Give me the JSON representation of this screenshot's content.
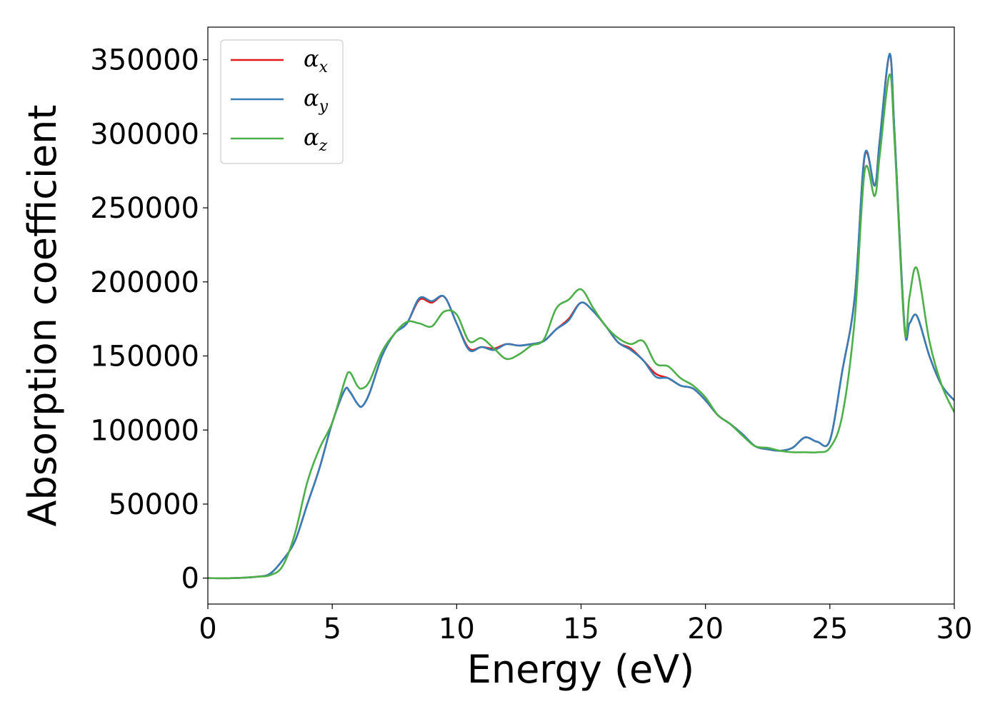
{
  "chart_data": {
    "type": "line",
    "xlabel": "Energy (eV)",
    "ylabel": "Absorption coefficient",
    "xlim": [
      0,
      30
    ],
    "ylim": [
      -17500,
      372000
    ],
    "xticks": [
      0,
      5,
      10,
      15,
      20,
      25,
      30
    ],
    "yticks": [
      0,
      50000,
      100000,
      150000,
      200000,
      250000,
      300000,
      350000
    ],
    "grid": false,
    "legend_position": "top-left",
    "series": [
      {
        "name": "α_x",
        "legend_base": "α",
        "legend_sub": "x",
        "color": "#e41a1c",
        "x": [
          0,
          1,
          2,
          2.5,
          3,
          3.5,
          4,
          4.5,
          5,
          5.5,
          5.7,
          6,
          6.2,
          6.5,
          7,
          7.5,
          8,
          8.5,
          9,
          9.5,
          10,
          10.5,
          11,
          11.5,
          12,
          12.5,
          13,
          13.5,
          14,
          14.5,
          15,
          15.5,
          16,
          16.5,
          17,
          17.5,
          18,
          18.5,
          19,
          19.5,
          20,
          20.5,
          21,
          21.5,
          22,
          22.5,
          23,
          23.5,
          24,
          24.5,
          25,
          25.5,
          26,
          26.4,
          26.8,
          27,
          27.4,
          27.6,
          28,
          28.2,
          28.5,
          29,
          29.5,
          30
        ],
        "y": [
          0,
          0,
          1000,
          3000,
          12000,
          25000,
          50000,
          75000,
          105000,
          127000,
          126000,
          118000,
          116000,
          125000,
          150000,
          165000,
          172000,
          188000,
          186000,
          190000,
          172000,
          155000,
          156000,
          155000,
          158000,
          157000,
          158000,
          160000,
          168000,
          175000,
          186000,
          180000,
          170000,
          159000,
          155000,
          147000,
          138000,
          135000,
          130000,
          128000,
          120000,
          110000,
          104000,
          97000,
          89000,
          87000,
          86000,
          88000,
          95000,
          92000,
          93000,
          140000,
          190000,
          285000,
          265000,
          295000,
          353000,
          300000,
          170000,
          172000,
          177000,
          150000,
          130000,
          120000
        ]
      },
      {
        "name": "α_y",
        "legend_base": "α",
        "legend_sub": "y",
        "color": "#377eb8",
        "x": [
          0,
          1,
          2,
          2.5,
          3,
          3.5,
          4,
          4.5,
          5,
          5.5,
          5.7,
          6,
          6.2,
          6.5,
          7,
          7.5,
          8,
          8.5,
          9,
          9.5,
          10,
          10.5,
          11,
          11.5,
          12,
          12.5,
          13,
          13.5,
          14,
          14.5,
          15,
          15.5,
          16,
          16.5,
          17,
          17.5,
          18,
          18.5,
          19,
          19.5,
          20,
          20.5,
          21,
          21.5,
          22,
          22.5,
          23,
          23.5,
          24,
          24.5,
          25,
          25.5,
          26,
          26.4,
          26.8,
          27,
          27.4,
          27.6,
          28,
          28.2,
          28.5,
          29,
          29.5,
          30
        ],
        "y": [
          0,
          0,
          1000,
          3000,
          12000,
          25000,
          50000,
          75000,
          105000,
          127000,
          126000,
          118000,
          116000,
          125000,
          150000,
          165000,
          172000,
          189000,
          187000,
          190000,
          172000,
          154000,
          156000,
          154000,
          158000,
          157000,
          158000,
          160000,
          168000,
          174000,
          186000,
          180000,
          170000,
          159000,
          154000,
          147000,
          136000,
          135000,
          130000,
          128000,
          120000,
          110000,
          104000,
          97000,
          89000,
          87000,
          86000,
          88000,
          95000,
          92000,
          93000,
          140000,
          190000,
          286000,
          265000,
          295000,
          354000,
          300000,
          170000,
          172000,
          177000,
          150000,
          130000,
          120000
        ]
      },
      {
        "name": "α_z",
        "legend_base": "α",
        "legend_sub": "z",
        "color": "#4daf4a",
        "x": [
          0,
          1,
          2,
          2.5,
          3,
          3.5,
          4,
          4.5,
          5,
          5.5,
          5.7,
          6,
          6.2,
          6.5,
          7,
          7.5,
          8,
          8.5,
          9,
          9.5,
          10,
          10.5,
          11,
          11.5,
          12,
          12.5,
          13,
          13.5,
          14,
          14.5,
          15,
          15.5,
          16,
          16.5,
          17,
          17.5,
          18,
          18.5,
          19,
          19.5,
          20,
          20.5,
          21,
          21.5,
          22,
          22.5,
          23,
          23.5,
          24,
          24.5,
          25,
          25.5,
          26,
          26.4,
          26.8,
          27,
          27.4,
          27.6,
          28,
          28.2,
          28.5,
          29,
          29.5,
          30
        ],
        "y": [
          0,
          0,
          1000,
          2000,
          8000,
          30000,
          65000,
          88000,
          105000,
          133000,
          139000,
          130000,
          128000,
          133000,
          153000,
          165000,
          173000,
          172000,
          170000,
          180000,
          178000,
          160000,
          162000,
          155000,
          148000,
          151000,
          157000,
          161000,
          182000,
          188000,
          195000,
          182000,
          170000,
          162000,
          158000,
          160000,
          145000,
          143000,
          135000,
          130000,
          122000,
          110000,
          104000,
          96000,
          89000,
          88000,
          86000,
          85000,
          85000,
          85000,
          88000,
          110000,
          175000,
          275000,
          258000,
          285000,
          340000,
          295000,
          168000,
          190000,
          209000,
          160000,
          130000,
          112000
        ]
      }
    ]
  }
}
